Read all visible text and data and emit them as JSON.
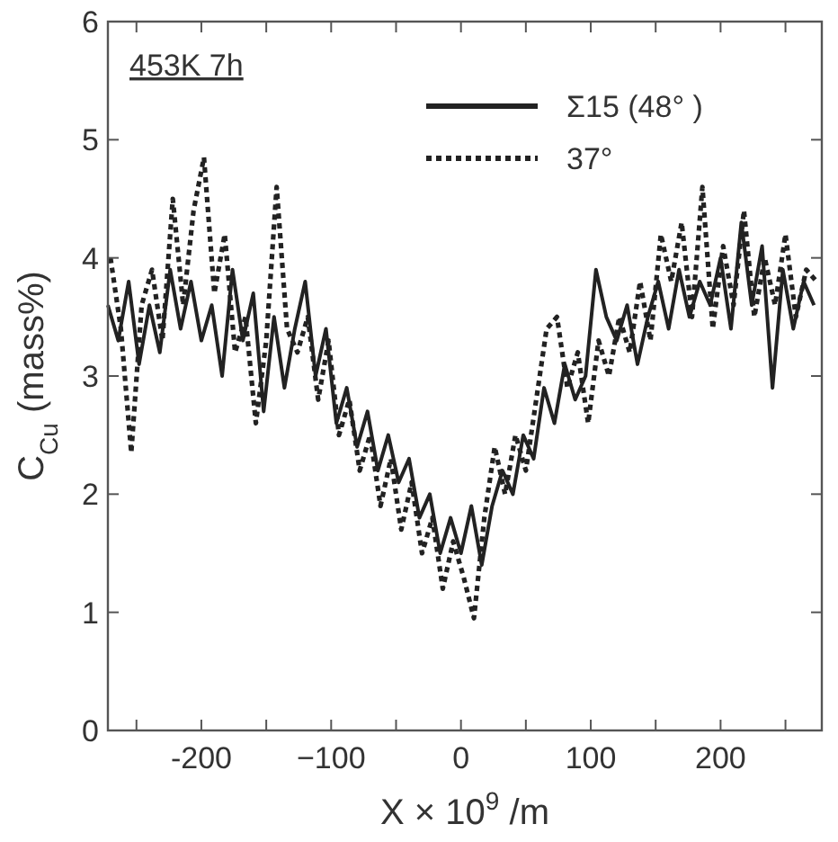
{
  "chart_data": {
    "type": "line",
    "xlabel": "X × 10$^{9}$ /m",
    "ylabel": "C$_{Cu}$ (mass%)",
    "annotations": [
      "453K 7h"
    ],
    "xlim": [
      -272,
      278
    ],
    "ylim": [
      0,
      6
    ],
    "xticks": [
      {
        "value": -250,
        "label": null
      },
      "-200",
      {
        "value": -150,
        "label": null
      },
      {
        "value": -100,
        "label": "−100"
      },
      {
        "value": -50,
        "label": null
      },
      0,
      {
        "value": 50,
        "label": null
      },
      100,
      {
        "value": 150,
        "label": null
      },
      200,
      {
        "value": 250,
        "label": null
      }
    ],
    "yticks": [
      0,
      1,
      2,
      3,
      4,
      5,
      6
    ],
    "legend": "top right",
    "grid": false,
    "marker": "none",
    "series": [
      {
        "name": "Σ15 (48°  )",
        "color": "#222222",
        "line_style": "solid",
        "x": [
          -272,
          -264,
          -256,
          -248,
          -240,
          -232,
          -224,
          -216,
          -208,
          -200,
          -192,
          -184,
          -176,
          -168,
          -160,
          -152,
          -144,
          -136,
          -128,
          -120,
          -112,
          -104,
          -96,
          -88,
          -80,
          -72,
          -64,
          -56,
          -48,
          -40,
          -32,
          -24,
          -16,
          -8,
          0,
          8,
          16,
          24,
          32,
          40,
          48,
          56,
          64,
          72,
          80,
          88,
          96,
          104,
          112,
          120,
          128,
          136,
          144,
          152,
          160,
          168,
          176,
          184,
          192,
          200,
          208,
          216,
          224,
          232,
          240,
          248,
          256,
          264,
          272
        ],
        "values": [
          3.6,
          3.3,
          3.8,
          3.1,
          3.6,
          3.2,
          3.9,
          3.4,
          3.8,
          3.3,
          3.6,
          3.0,
          3.9,
          3.3,
          3.7,
          2.7,
          3.5,
          2.9,
          3.4,
          3.8,
          3.0,
          3.4,
          2.6,
          2.9,
          2.4,
          2.7,
          2.2,
          2.5,
          2.1,
          2.3,
          1.8,
          2.0,
          1.5,
          1.8,
          1.5,
          1.9,
          1.4,
          1.9,
          2.2,
          2.0,
          2.5,
          2.3,
          2.9,
          2.6,
          3.1,
          2.8,
          3.0,
          3.9,
          3.5,
          3.3,
          3.6,
          3.1,
          3.5,
          3.8,
          3.4,
          3.9,
          3.5,
          3.8,
          3.6,
          4.0,
          3.4,
          4.3,
          3.6,
          4.1,
          2.9,
          3.9,
          3.4,
          3.8,
          3.6
        ]
      },
      {
        "name": "37°",
        "color": "#222222",
        "line_style": "dotted",
        "x": [
          -270,
          -262,
          -254,
          -246,
          -238,
          -230,
          -222,
          -214,
          -206,
          -198,
          -190,
          -182,
          -174,
          -166,
          -158,
          -150,
          -142,
          -134,
          -126,
          -118,
          -110,
          -102,
          -94,
          -86,
          -78,
          -70,
          -62,
          -54,
          -46,
          -38,
          -30,
          -22,
          -14,
          -6,
          2,
          10,
          18,
          26,
          34,
          42,
          50,
          58,
          66,
          74,
          82,
          90,
          98,
          106,
          114,
          122,
          130,
          138,
          146,
          154,
          162,
          170,
          178,
          186,
          194,
          202,
          210,
          218,
          226,
          234,
          242,
          250,
          258,
          266,
          274
        ],
        "values": [
          4.0,
          3.4,
          2.35,
          3.6,
          3.9,
          3.3,
          4.5,
          3.6,
          4.4,
          4.85,
          3.7,
          4.2,
          3.2,
          3.5,
          2.6,
          3.3,
          4.6,
          3.4,
          3.2,
          3.5,
          2.8,
          3.3,
          2.5,
          2.8,
          2.2,
          2.5,
          1.9,
          2.3,
          1.7,
          2.1,
          1.5,
          1.8,
          1.2,
          1.6,
          1.3,
          0.95,
          1.8,
          2.4,
          2.0,
          2.5,
          2.2,
          2.8,
          3.4,
          3.5,
          2.9,
          3.2,
          2.6,
          3.3,
          3.0,
          3.5,
          3.2,
          3.8,
          3.3,
          4.2,
          3.8,
          4.3,
          3.5,
          4.6,
          3.4,
          4.1,
          3.6,
          4.4,
          3.5,
          4.0,
          3.6,
          4.2,
          3.5,
          3.9,
          3.8
        ]
      }
    ]
  }
}
